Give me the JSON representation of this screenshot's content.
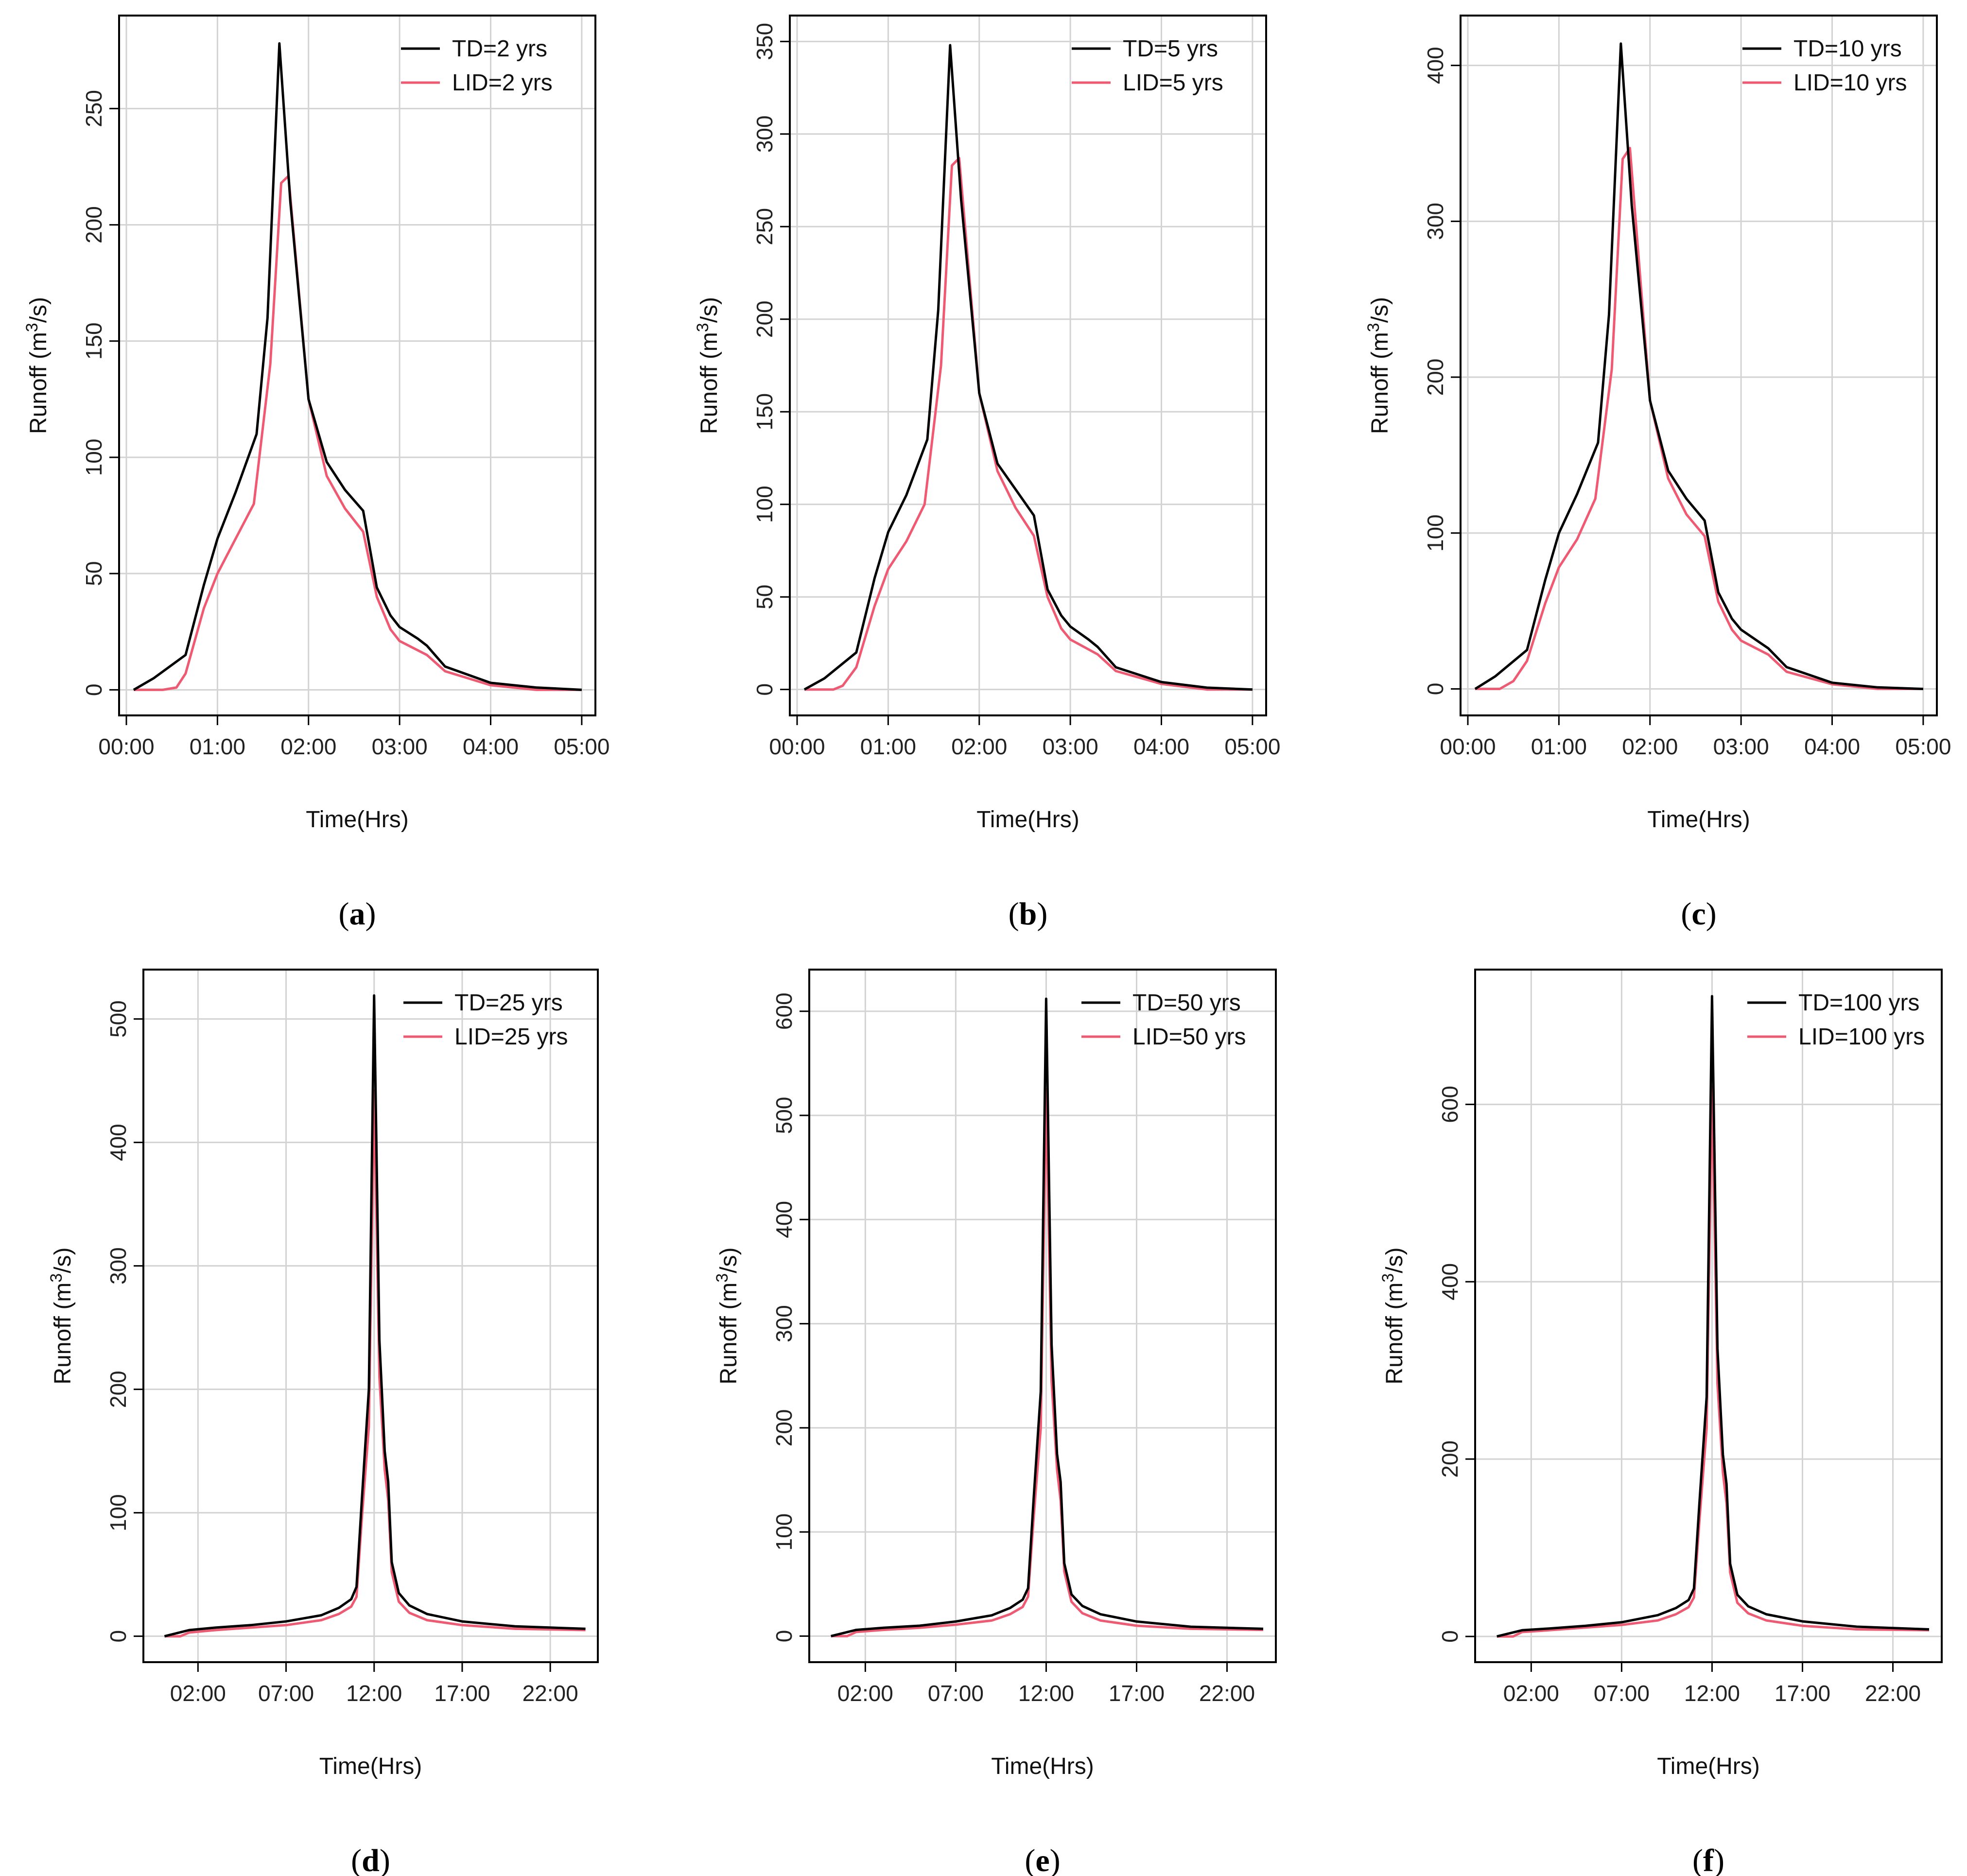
{
  "colors": {
    "td": "#000000",
    "lid": "#ef5a72",
    "grid": "#d3d3d3",
    "frame": "#000000"
  },
  "chart_data": [
    {
      "type": "line",
      "panel": "a",
      "caption_open": "(",
      "caption_close": ")",
      "xlabel": "Time(Hrs)",
      "ylabel": "Runoff (m",
      "ylabel_sup": "3",
      "ylabel_tail": "/s)",
      "x_unit": "hours",
      "xlim": [
        -0.08,
        5.15
      ],
      "ylim": [
        -11,
        290
      ],
      "x_ticks": [
        0,
        1,
        2,
        3,
        4,
        5
      ],
      "x_tick_labels": [
        "00:00",
        "01:00",
        "02:00",
        "03:00",
        "04:00",
        "05:00"
      ],
      "y_ticks": [
        0,
        50,
        100,
        150,
        200,
        250
      ],
      "y_tick_labels": [
        "0",
        "50",
        "100",
        "150",
        "200",
        "250"
      ],
      "grid": true,
      "legend_position": "top-right",
      "series": [
        {
          "name": "TD=2 yrs",
          "x": [
            0.08,
            0.3,
            0.65,
            0.85,
            1.0,
            1.2,
            1.43,
            1.55,
            1.68,
            1.8,
            2.0,
            2.2,
            2.4,
            2.6,
            2.75,
            2.9,
            3.0,
            3.2,
            3.3,
            3.5,
            4.0,
            4.5,
            5.0
          ],
          "y": [
            0,
            5,
            15,
            45,
            65,
            85,
            110,
            160,
            278,
            210,
            125,
            98,
            86,
            77,
            44,
            32,
            27,
            22,
            19,
            10,
            3,
            1,
            0
          ]
        },
        {
          "name": "LID=2 yrs",
          "x": [
            0.08,
            0.4,
            0.55,
            0.65,
            0.85,
            1.0,
            1.2,
            1.4,
            1.58,
            1.7,
            1.78,
            2.0,
            2.2,
            2.4,
            2.6,
            2.75,
            2.9,
            3.0,
            3.3,
            3.5,
            4.0,
            4.5,
            5.0
          ],
          "y": [
            0,
            0,
            1,
            7,
            35,
            50,
            65,
            80,
            140,
            218,
            221,
            125,
            92,
            78,
            68,
            40,
            26,
            21,
            15,
            8,
            2,
            0,
            0
          ]
        }
      ]
    },
    {
      "type": "line",
      "panel": "b",
      "caption_open": "(",
      "caption_close": ")",
      "xlabel": "Time(Hrs)",
      "ylabel": "Runoff (m",
      "ylabel_sup": "3",
      "ylabel_tail": "/s)",
      "x_unit": "hours",
      "xlim": [
        -0.08,
        5.15
      ],
      "ylim": [
        -14,
        364
      ],
      "x_ticks": [
        0,
        1,
        2,
        3,
        4,
        5
      ],
      "x_tick_labels": [
        "00:00",
        "01:00",
        "02:00",
        "03:00",
        "04:00",
        "05:00"
      ],
      "y_ticks": [
        0,
        50,
        100,
        150,
        200,
        250,
        300,
        350
      ],
      "y_tick_labels": [
        "0",
        "50",
        "100",
        "150",
        "200",
        "250",
        "300",
        "350"
      ],
      "grid": true,
      "legend_position": "top-right",
      "series": [
        {
          "name": "TD=5 yrs",
          "x": [
            0.08,
            0.3,
            0.65,
            0.85,
            1.0,
            1.2,
            1.43,
            1.55,
            1.68,
            1.8,
            2.0,
            2.2,
            2.4,
            2.6,
            2.75,
            2.9,
            3.0,
            3.2,
            3.3,
            3.5,
            4.0,
            4.5,
            5.0
          ],
          "y": [
            0,
            6,
            20,
            60,
            85,
            105,
            135,
            205,
            348,
            265,
            160,
            122,
            108,
            94,
            54,
            40,
            34,
            27,
            23,
            12,
            4,
            1,
            0
          ]
        },
        {
          "name": "LID=5 yrs",
          "x": [
            0.08,
            0.4,
            0.5,
            0.65,
            0.85,
            1.0,
            1.2,
            1.4,
            1.58,
            1.7,
            1.78,
            2.0,
            2.2,
            2.4,
            2.6,
            2.75,
            2.9,
            3.0,
            3.3,
            3.5,
            4.0,
            4.5,
            5.0
          ],
          "y": [
            0,
            0,
            2,
            12,
            45,
            65,
            80,
            100,
            175,
            283,
            287,
            160,
            118,
            98,
            83,
            50,
            33,
            27,
            19,
            10,
            3,
            0,
            0
          ]
        }
      ]
    },
    {
      "type": "line",
      "panel": "c",
      "caption_open": "(",
      "caption_close": ")",
      "xlabel": "Time(Hrs)",
      "ylabel": "Runoff (m",
      "ylabel_sup": "3",
      "ylabel_tail": "/s)",
      "x_unit": "hours",
      "xlim": [
        -0.08,
        5.15
      ],
      "ylim": [
        -17,
        432
      ],
      "x_ticks": [
        0,
        1,
        2,
        3,
        4,
        5
      ],
      "x_tick_labels": [
        "00:00",
        "01:00",
        "02:00",
        "03:00",
        "04:00",
        "05:00"
      ],
      "y_ticks": [
        0,
        100,
        200,
        300,
        400
      ],
      "y_tick_labels": [
        "0",
        "100",
        "200",
        "300",
        "400"
      ],
      "grid": true,
      "legend_position": "top-right",
      "series": [
        {
          "name": "TD=10 yrs",
          "x": [
            0.08,
            0.3,
            0.65,
            0.85,
            1.0,
            1.2,
            1.43,
            1.55,
            1.68,
            1.8,
            2.0,
            2.2,
            2.4,
            2.6,
            2.75,
            2.9,
            3.0,
            3.2,
            3.3,
            3.5,
            4.0,
            4.5,
            5.0
          ],
          "y": [
            0,
            8,
            25,
            70,
            100,
            125,
            158,
            240,
            414,
            310,
            185,
            140,
            122,
            108,
            62,
            45,
            38,
            30,
            26,
            14,
            4,
            1,
            0
          ]
        },
        {
          "name": "LID=10 yrs",
          "x": [
            0.08,
            0.35,
            0.5,
            0.65,
            0.85,
            1.0,
            1.2,
            1.4,
            1.58,
            1.7,
            1.78,
            2.0,
            2.2,
            2.4,
            2.6,
            2.75,
            2.9,
            3.0,
            3.3,
            3.5,
            4.0,
            4.5,
            5.0
          ],
          "y": [
            0,
            0,
            5,
            18,
            55,
            78,
            96,
            122,
            205,
            340,
            347,
            185,
            135,
            112,
            98,
            56,
            38,
            31,
            22,
            11,
            3,
            0,
            0
          ]
        }
      ]
    },
    {
      "type": "line",
      "panel": "d",
      "caption_open": "(",
      "caption_close": ")",
      "xlabel": "Time(Hrs)",
      "ylabel": "Runoff (m",
      "ylabel_sup": "3",
      "ylabel_tail": "/s)",
      "x_unit": "hours",
      "xlim": [
        -1.1,
        24.7
      ],
      "ylim": [
        -21,
        540
      ],
      "x_ticks": [
        2,
        7,
        12,
        17,
        22
      ],
      "x_tick_labels": [
        "02:00",
        "07:00",
        "12:00",
        "17:00",
        "22:00"
      ],
      "y_ticks": [
        0,
        100,
        200,
        300,
        400,
        500
      ],
      "y_tick_labels": [
        "0",
        "100",
        "200",
        "300",
        "400",
        "500"
      ],
      "grid": true,
      "legend_position": "top-right",
      "series": [
        {
          "name": "TD=25 yrs",
          "x": [
            0.1,
            1.5,
            3.0,
            5.0,
            7.0,
            9.0,
            10.0,
            10.7,
            11.0,
            11.3,
            11.7,
            12.0,
            12.3,
            12.6,
            12.8,
            13.0,
            13.4,
            14.0,
            15.0,
            17.0,
            20.0,
            24.0
          ],
          "y": [
            0,
            5,
            7,
            9,
            12,
            17,
            23,
            30,
            40,
            110,
            200,
            519,
            240,
            150,
            125,
            60,
            35,
            25,
            18,
            12,
            8,
            6
          ]
        },
        {
          "name": "LID=25 yrs",
          "x": [
            0.1,
            1.0,
            1.5,
            3.0,
            5.0,
            7.0,
            9.0,
            10.0,
            10.7,
            11.0,
            11.3,
            11.7,
            12.0,
            12.3,
            12.6,
            12.8,
            13.0,
            13.4,
            14.0,
            15.0,
            17.0,
            20.0,
            24.0
          ],
          "y": [
            0,
            0,
            3,
            5,
            7,
            9,
            13,
            18,
            24,
            32,
            95,
            170,
            442,
            210,
            135,
            110,
            52,
            28,
            19,
            13,
            9,
            6,
            5
          ]
        }
      ]
    },
    {
      "type": "line",
      "panel": "e",
      "caption_open": "(",
      "caption_close": ")",
      "xlabel": "Time(Hrs)",
      "ylabel": "Runoff (m",
      "ylabel_sup": "3",
      "ylabel_tail": "/s)",
      "x_unit": "hours",
      "xlim": [
        -1.1,
        24.7
      ],
      "ylim": [
        -25,
        640
      ],
      "x_ticks": [
        2,
        7,
        12,
        17,
        22
      ],
      "x_tick_labels": [
        "02:00",
        "07:00",
        "12:00",
        "17:00",
        "22:00"
      ],
      "y_ticks": [
        0,
        100,
        200,
        300,
        400,
        500,
        600
      ],
      "y_tick_labels": [
        "0",
        "100",
        "200",
        "300",
        "400",
        "500",
        "600"
      ],
      "grid": true,
      "legend_position": "top-right",
      "series": [
        {
          "name": "TD=50 yrs",
          "x": [
            0.1,
            1.5,
            3.0,
            5.0,
            7.0,
            9.0,
            10.0,
            10.7,
            11.0,
            11.3,
            11.7,
            12.0,
            12.3,
            12.6,
            12.8,
            13.0,
            13.4,
            14.0,
            15.0,
            17.0,
            20.0,
            24.0
          ],
          "y": [
            0,
            6,
            8,
            10,
            14,
            20,
            27,
            35,
            46,
            130,
            235,
            612,
            280,
            175,
            148,
            70,
            40,
            29,
            21,
            14,
            9,
            7
          ]
        },
        {
          "name": "LID=50 yrs",
          "x": [
            0.1,
            1.0,
            1.5,
            3.0,
            5.0,
            7.0,
            9.0,
            10.0,
            10.7,
            11.0,
            11.3,
            11.7,
            12.0,
            12.3,
            12.6,
            12.8,
            13.0,
            13.4,
            14.0,
            15.0,
            17.0,
            20.0,
            24.0
          ],
          "y": [
            0,
            0,
            4,
            6,
            8,
            11,
            15,
            21,
            28,
            38,
            112,
            200,
            525,
            245,
            160,
            130,
            62,
            33,
            22,
            15,
            10,
            7,
            6
          ]
        }
      ]
    },
    {
      "type": "line",
      "panel": "f",
      "caption_open": "(",
      "caption_close": ")",
      "xlabel": "Time(Hrs)",
      "ylabel": "Runoff (m",
      "ylabel_sup": "3",
      "ylabel_tail": "/s)",
      "x_unit": "hours",
      "xlim": [
        -1.1,
        24.7
      ],
      "ylim": [
        -29,
        752
      ],
      "x_ticks": [
        2,
        7,
        12,
        17,
        22
      ],
      "x_tick_labels": [
        "02:00",
        "07:00",
        "12:00",
        "17:00",
        "22:00"
      ],
      "y_ticks": [
        0,
        200,
        400,
        600
      ],
      "y_tick_labels": [
        "0",
        "200",
        "400",
        "600"
      ],
      "grid": true,
      "legend_position": "top-right",
      "series": [
        {
          "name": "TD=100 yrs",
          "x": [
            0.1,
            1.5,
            3.0,
            5.0,
            7.0,
            9.0,
            10.0,
            10.7,
            11.0,
            11.3,
            11.7,
            12.0,
            12.3,
            12.6,
            12.8,
            13.0,
            13.4,
            14.0,
            15.0,
            17.0,
            20.0,
            24.0
          ],
          "y": [
            0,
            7,
            9,
            12,
            16,
            24,
            32,
            41,
            54,
            150,
            270,
            722,
            325,
            205,
            172,
            82,
            47,
            34,
            25,
            17,
            11,
            8
          ]
        },
        {
          "name": "LID=100 yrs",
          "x": [
            0.1,
            1.0,
            1.5,
            3.0,
            5.0,
            7.0,
            9.0,
            10.0,
            10.7,
            11.0,
            11.3,
            11.7,
            12.0,
            12.3,
            12.6,
            12.8,
            13.0,
            13.4,
            14.0,
            15.0,
            17.0,
            20.0,
            24.0
          ],
          "y": [
            0,
            0,
            5,
            7,
            10,
            13,
            18,
            25,
            33,
            44,
            130,
            235,
            620,
            285,
            185,
            150,
            72,
            38,
            26,
            18,
            12,
            8,
            7
          ]
        }
      ]
    }
  ]
}
